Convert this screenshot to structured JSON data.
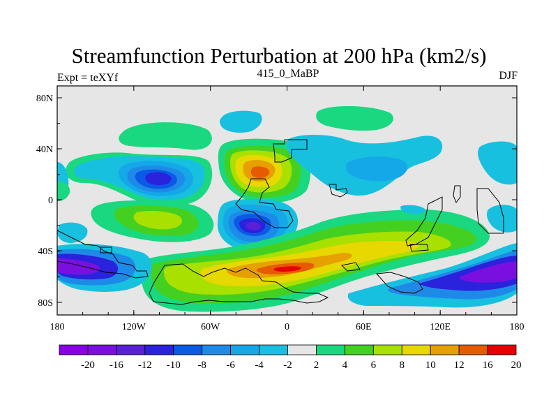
{
  "title": "Streamfunction Perturbation at 200 hPa (km2/s)",
  "left_label": "Expt = teXYf",
  "center_label": "415_0_MaBP",
  "right_label": "DJF",
  "lat_ticks": [
    "80N",
    "40N",
    "0",
    "40S",
    "80S"
  ],
  "lon_ticks": [
    "180",
    "120W",
    "60W",
    "0",
    "60E",
    "120E",
    "180"
  ],
  "background_color": "#e6e6e6",
  "colorbar": {
    "labels": [
      "-20",
      "-16",
      "-12",
      "-10",
      "-8",
      "-6",
      "-4",
      "-2",
      "2",
      "4",
      "6",
      "8",
      "10",
      "12",
      "16",
      "20"
    ],
    "colors": [
      "#8a00e6",
      "#7a10e0",
      "#5a20d8",
      "#2a22dc",
      "#0a5ae6",
      "#1e8ae8",
      "#14a8e8",
      "#18c0e0",
      "#e6e6e6",
      "#1ad880",
      "#44d020",
      "#a8e000",
      "#e6d800",
      "#e6a000",
      "#e65a00",
      "#e60000"
    ]
  }
}
